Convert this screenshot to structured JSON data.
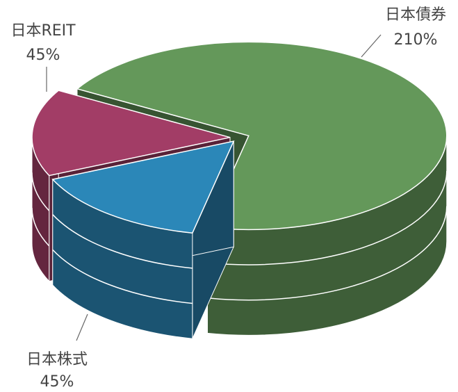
{
  "chart_data": {
    "type": "pie",
    "categories": [
      "日本債券",
      "日本株式",
      "日本REIT"
    ],
    "values": [
      210,
      45,
      45
    ],
    "value_labels": [
      "210%",
      "45%",
      "45%"
    ],
    "colors": [
      "#64985a",
      "#2b87b8",
      "#a23d66"
    ]
  }
}
